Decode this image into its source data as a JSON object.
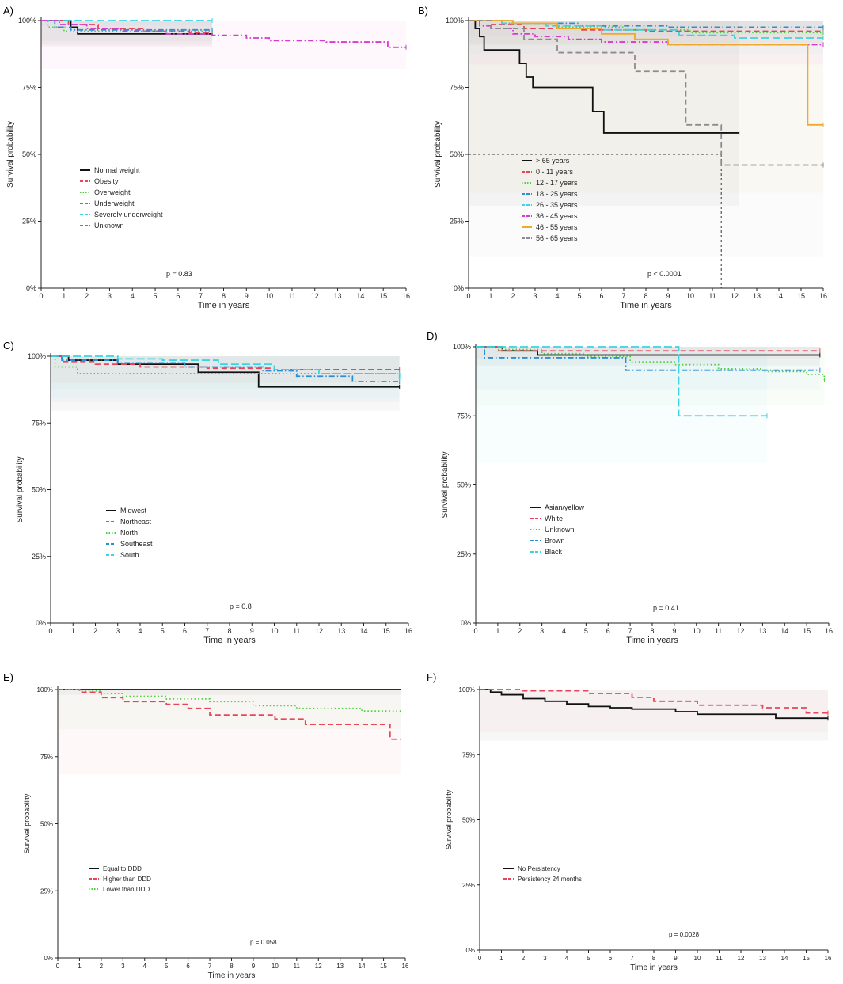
{
  "figure": {
    "panel_labels": [
      "A)",
      "B)",
      "C)",
      "D)",
      "E)",
      "F)"
    ]
  },
  "colors": {
    "black": "#111111",
    "red": "#e8445a",
    "green": "#4ecf3f",
    "blue": "#2b8fd6",
    "cyan": "#3cd3e3",
    "magenta": "#d63ad0",
    "orange": "#f0a92a",
    "gray": "#8c8c8c"
  },
  "chart_data": [
    {
      "type": "line",
      "panel": "A)",
      "xlabel": "Time in years",
      "ylabel": "Survival probability",
      "xlim": [
        0,
        16
      ],
      "ylim": [
        0,
        1
      ],
      "x_ticks": [
        "0",
        "1",
        "2",
        "3",
        "4",
        "5",
        "6",
        "7",
        "8",
        "9",
        "10",
        "11",
        "12",
        "13",
        "14",
        "15",
        "16"
      ],
      "y_ticks": [
        "0%",
        "25%",
        "50%",
        "75%",
        "100%"
      ],
      "pvalue": "p = 0.83",
      "series": [
        {
          "name": "Normal weight",
          "color": "black",
          "dash": "solid",
          "x": [
            0,
            1.3,
            1.6,
            7.5
          ],
          "y": [
            1.0,
            0.975,
            0.95,
            0.95
          ]
        },
        {
          "name": "Obesity",
          "color": "red",
          "dash": "dash",
          "x": [
            0,
            1.2,
            2.5,
            4.5,
            6.5,
            7.5
          ],
          "y": [
            1.0,
            0.985,
            0.97,
            0.96,
            0.955,
            0.955
          ]
        },
        {
          "name": "Overweight",
          "color": "green",
          "dash": "dot",
          "x": [
            0,
            0.3,
            1.0,
            7.5
          ],
          "y": [
            1.0,
            0.975,
            0.96,
            0.96
          ]
        },
        {
          "name": "Underweight",
          "color": "blue",
          "dash": "dashdot",
          "x": [
            0,
            0.6,
            1.3,
            7.5
          ],
          "y": [
            1.0,
            0.975,
            0.965,
            0.965
          ]
        },
        {
          "name": "Severely underweight",
          "color": "cyan",
          "dash": "longdash",
          "x": [
            0,
            7.5
          ],
          "y": [
            1.0,
            1.0
          ]
        },
        {
          "name": "Unknown",
          "color": "magenta",
          "dash": "dashdot",
          "x": [
            0,
            0.8,
            2.0,
            3.5,
            5.5,
            7.5,
            9.0,
            10.0,
            12.5,
            15.2,
            16.0
          ],
          "y": [
            1.0,
            0.985,
            0.97,
            0.96,
            0.95,
            0.945,
            0.935,
            0.925,
            0.92,
            0.9,
            0.9
          ]
        }
      ]
    },
    {
      "type": "line",
      "panel": "B)",
      "xlabel": "Time in years",
      "ylabel": "Survival probability",
      "xlim": [
        0,
        16
      ],
      "ylim": [
        0,
        1
      ],
      "x_ticks": [
        "0",
        "1",
        "2",
        "3",
        "4",
        "5",
        "6",
        "7",
        "8",
        "9",
        "10",
        "11",
        "12",
        "13",
        "14",
        "15",
        "16"
      ],
      "y_ticks": [
        "0%",
        "25%",
        "50%",
        "75%",
        "100%"
      ],
      "pvalue": "p < 0.0001",
      "median_line": {
        "x": 11.4,
        "y": 0.5
      },
      "series": [
        {
          "name": "> 65 years",
          "color": "black",
          "dash": "solid",
          "x": [
            0,
            0.3,
            0.5,
            0.7,
            2.3,
            2.6,
            2.9,
            5.6,
            6.1,
            12.2
          ],
          "y": [
            1.0,
            0.97,
            0.94,
            0.89,
            0.84,
            0.79,
            0.75,
            0.66,
            0.58,
            0.58
          ]
        },
        {
          "name": "0 - 11 years",
          "color": "red",
          "dash": "dash",
          "x": [
            0,
            1.0,
            2.5,
            5.0,
            8.0,
            16.0
          ],
          "y": [
            1.0,
            0.985,
            0.97,
            0.965,
            0.96,
            0.96
          ]
        },
        {
          "name": "12 - 17 years",
          "color": "green",
          "dash": "dot",
          "x": [
            0,
            1.5,
            4.0,
            7.0,
            10.0,
            16.0
          ],
          "y": [
            1.0,
            0.99,
            0.975,
            0.965,
            0.955,
            0.955
          ]
        },
        {
          "name": "18 - 25 years",
          "color": "blue",
          "dash": "dashdot",
          "x": [
            0,
            2.0,
            5.0,
            9.0,
            16.0
          ],
          "y": [
            1.0,
            0.99,
            0.98,
            0.975,
            0.975
          ]
        },
        {
          "name": "26 - 35 years",
          "color": "cyan",
          "dash": "longdash",
          "x": [
            0,
            1.5,
            3.5,
            6.0,
            9.5,
            12.0,
            16.0
          ],
          "y": [
            1.0,
            0.99,
            0.98,
            0.965,
            0.945,
            0.935,
            0.935
          ]
        },
        {
          "name": "36 - 45 years",
          "color": "magenta",
          "dash": "dashdot",
          "x": [
            0,
            0.5,
            1.0,
            2.0,
            3.0,
            4.5,
            6.0,
            9.0,
            16.0
          ],
          "y": [
            1.0,
            0.98,
            0.97,
            0.95,
            0.94,
            0.93,
            0.92,
            0.91,
            0.91
          ]
        },
        {
          "name": "46 - 55 years",
          "color": "orange",
          "dash": "solid",
          "x": [
            0,
            2.0,
            4.0,
            6.0,
            7.5,
            9.0,
            15.3,
            16.0
          ],
          "y": [
            1.0,
            0.99,
            0.97,
            0.95,
            0.93,
            0.91,
            0.61,
            0.61
          ]
        },
        {
          "name": "56 - 65 years",
          "color": "gray",
          "dash": "dash",
          "x": [
            0,
            1.0,
            2.5,
            4.0,
            7.5,
            9.8,
            11.4,
            16.0
          ],
          "y": [
            1.0,
            0.97,
            0.93,
            0.88,
            0.81,
            0.61,
            0.46,
            0.46
          ]
        }
      ]
    },
    {
      "type": "line",
      "panel": "C)",
      "xlabel": "Time in years",
      "ylabel": "Survival probability",
      "xlim": [
        0,
        16
      ],
      "ylim": [
        0,
        1
      ],
      "x_ticks": [
        "0",
        "1",
        "2",
        "3",
        "4",
        "5",
        "6",
        "7",
        "8",
        "9",
        "10",
        "11",
        "12",
        "13",
        "14",
        "15",
        "16"
      ],
      "y_ticks": [
        "0%",
        "25%",
        "50%",
        "75%",
        "100%"
      ],
      "pvalue": "p = 0.8",
      "series": [
        {
          "name": "Midwest",
          "color": "black",
          "dash": "solid",
          "x": [
            0,
            0.8,
            3.0,
            6.6,
            9.3,
            15.6
          ],
          "y": [
            1.0,
            0.985,
            0.97,
            0.94,
            0.885,
            0.885
          ]
        },
        {
          "name": "Northeast",
          "color": "red",
          "dash": "dash",
          "x": [
            0,
            0.5,
            2.0,
            4.0,
            7.0,
            10.0,
            15.6
          ],
          "y": [
            1.0,
            0.98,
            0.97,
            0.96,
            0.955,
            0.95,
            0.95
          ]
        },
        {
          "name": "North",
          "color": "green",
          "dash": "dot",
          "x": [
            0,
            0.2,
            1.2,
            7.0,
            15.6
          ],
          "y": [
            1.0,
            0.96,
            0.935,
            0.935,
            0.935
          ]
        },
        {
          "name": "Southeast",
          "color": "blue",
          "dash": "dashdot",
          "x": [
            0,
            0.5,
            3.0,
            6.0,
            9.5,
            11.0,
            13.5,
            15.6
          ],
          "y": [
            1.0,
            0.985,
            0.975,
            0.96,
            0.945,
            0.925,
            0.905,
            0.905
          ]
        },
        {
          "name": "South",
          "color": "cyan",
          "dash": "longdash",
          "x": [
            0,
            3.0,
            5.0,
            7.5,
            10.0,
            12.0,
            15.6
          ],
          "y": [
            1.0,
            0.99,
            0.985,
            0.97,
            0.95,
            0.935,
            0.915
          ]
        }
      ]
    },
    {
      "type": "line",
      "panel": "D)",
      "xlabel": "Time in years",
      "ylabel": "Survival probability",
      "xlim": [
        0,
        16
      ],
      "ylim": [
        0,
        1
      ],
      "x_ticks": [
        "0",
        "1",
        "2",
        "3",
        "4",
        "5",
        "6",
        "7",
        "8",
        "9",
        "10",
        "11",
        "12",
        "13",
        "14",
        "15",
        "16"
      ],
      "y_ticks": [
        "0%",
        "25%",
        "50%",
        "75%",
        "100%"
      ],
      "pvalue": "p = 0.41",
      "series": [
        {
          "name": "Asian/yellow",
          "color": "black",
          "dash": "solid",
          "x": [
            0,
            1.2,
            2.8,
            15.6
          ],
          "y": [
            1.0,
            0.985,
            0.97,
            0.97
          ]
        },
        {
          "name": "White",
          "color": "red",
          "dash": "dash",
          "x": [
            0,
            1.0,
            15.6
          ],
          "y": [
            1.0,
            0.985,
            0.985
          ]
        },
        {
          "name": "Unknown",
          "color": "green",
          "dash": "dot",
          "x": [
            0,
            1.0,
            3.0,
            5.0,
            7.0,
            9.0,
            11.0,
            13.0,
            15.0,
            15.8
          ],
          "y": [
            1.0,
            0.99,
            0.975,
            0.965,
            0.945,
            0.935,
            0.92,
            0.91,
            0.9,
            0.88
          ]
        },
        {
          "name": "Brown",
          "color": "blue",
          "dash": "dashdot",
          "x": [
            0,
            0.4,
            6.8,
            15.6
          ],
          "y": [
            1.0,
            0.96,
            0.915,
            0.915
          ]
        },
        {
          "name": "Black",
          "color": "cyan",
          "dash": "longdash",
          "x": [
            0,
            9.2,
            13.2
          ],
          "y": [
            1.0,
            0.75,
            0.75
          ]
        }
      ]
    },
    {
      "type": "line",
      "panel": "E)",
      "xlabel": "Time in years",
      "ylabel": "Survival probability",
      "xlim": [
        0,
        16
      ],
      "ylim": [
        0,
        1
      ],
      "x_ticks": [
        "0",
        "1",
        "2",
        "3",
        "4",
        "5",
        "6",
        "7",
        "8",
        "9",
        "10",
        "11",
        "12",
        "13",
        "14",
        "15",
        "16"
      ],
      "y_ticks": [
        "0%",
        "25%",
        "50%",
        "75%",
        "100%"
      ],
      "pvalue": "p = 0.058",
      "series": [
        {
          "name": "Equal to DDD",
          "color": "black",
          "dash": "solid",
          "x": [
            0,
            15.8
          ],
          "y": [
            1.0,
            1.0
          ]
        },
        {
          "name": "Higher than DDD",
          "color": "red",
          "dash": "dash",
          "x": [
            0,
            1.0,
            2.0,
            3.0,
            5.0,
            6.0,
            7.0,
            10.0,
            11.4,
            15.3,
            15.8
          ],
          "y": [
            1.0,
            0.99,
            0.97,
            0.955,
            0.945,
            0.93,
            0.905,
            0.89,
            0.87,
            0.815,
            0.815
          ]
        },
        {
          "name": "Lower than DDD",
          "color": "green",
          "dash": "dot",
          "x": [
            0,
            1.0,
            2.0,
            3.0,
            5.0,
            7.0,
            9.0,
            11.0,
            14.0,
            15.8
          ],
          "y": [
            1.0,
            0.995,
            0.985,
            0.975,
            0.965,
            0.955,
            0.94,
            0.93,
            0.92,
            0.92
          ]
        }
      ]
    },
    {
      "type": "line",
      "panel": "F)",
      "xlabel": "Time in years",
      "ylabel": "Survival probability",
      "xlim": [
        0,
        16
      ],
      "ylim": [
        0,
        1
      ],
      "x_ticks": [
        "0",
        "1",
        "2",
        "3",
        "4",
        "5",
        "6",
        "7",
        "8",
        "9",
        "10",
        "11",
        "12",
        "13",
        "14",
        "15",
        "16"
      ],
      "y_ticks": [
        "0%",
        "25%",
        "50%",
        "75%",
        "100%"
      ],
      "pvalue": "p = 0.0028",
      "series": [
        {
          "name": "No Persistency",
          "color": "black",
          "dash": "solid",
          "x": [
            0,
            0.5,
            1.0,
            2.0,
            3.0,
            4.0,
            5.0,
            6.0,
            7.0,
            9.0,
            10.0,
            13.6,
            16.0
          ],
          "y": [
            1.0,
            0.99,
            0.98,
            0.965,
            0.955,
            0.945,
            0.935,
            0.93,
            0.925,
            0.915,
            0.905,
            0.89,
            0.89
          ]
        },
        {
          "name": "Persistency 24 months",
          "color": "red",
          "dash": "dash",
          "x": [
            0,
            2.0,
            5.0,
            7.0,
            8.0,
            10.0,
            13.0,
            15.0,
            16.0
          ],
          "y": [
            1.0,
            0.995,
            0.985,
            0.97,
            0.955,
            0.94,
            0.93,
            0.91,
            0.91
          ]
        }
      ]
    }
  ]
}
